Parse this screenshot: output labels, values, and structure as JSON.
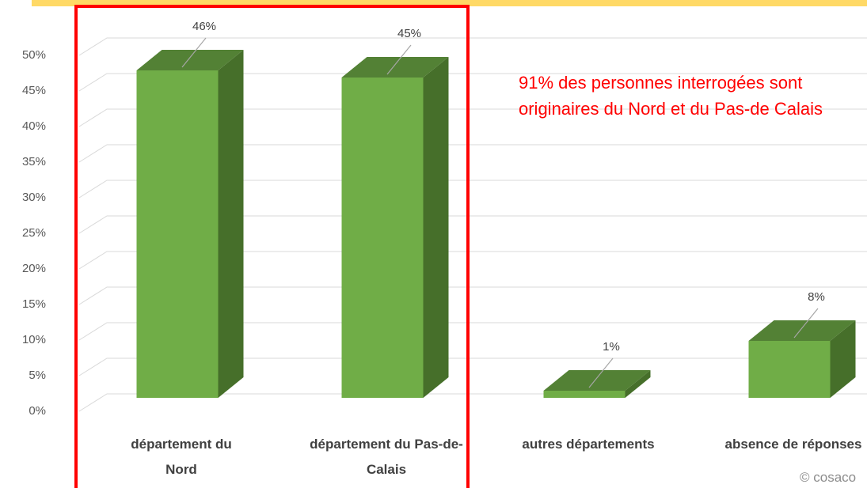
{
  "chart_data": {
    "type": "bar3d",
    "categories": [
      "département du Nord",
      "département du Pas-de-Calais",
      "autres départements",
      "absence de réponses"
    ],
    "values": [
      46,
      45,
      1,
      8
    ],
    "value_labels": [
      "46%",
      "45%",
      "1%",
      "8%"
    ],
    "color": "#70ad47",
    "ylim": [
      0,
      50
    ],
    "yticks": [
      {
        "value": 0,
        "label": "0%"
      },
      {
        "value": 5,
        "label": "5%"
      },
      {
        "value": 10,
        "label": "10%"
      },
      {
        "value": 15,
        "label": "15%"
      },
      {
        "value": 20,
        "label": "20%"
      },
      {
        "value": 25,
        "label": "25%"
      },
      {
        "value": 30,
        "label": "30%"
      },
      {
        "value": 35,
        "label": "35%"
      },
      {
        "value": 40,
        "label": "40%"
      },
      {
        "value": 45,
        "label": "45%"
      },
      {
        "value": 50,
        "label": "50%"
      }
    ],
    "grid": true,
    "annotation": "91% des personnes interrogées sont originaires du Nord et du Pas-de Calais",
    "credit": "© cosaco"
  }
}
